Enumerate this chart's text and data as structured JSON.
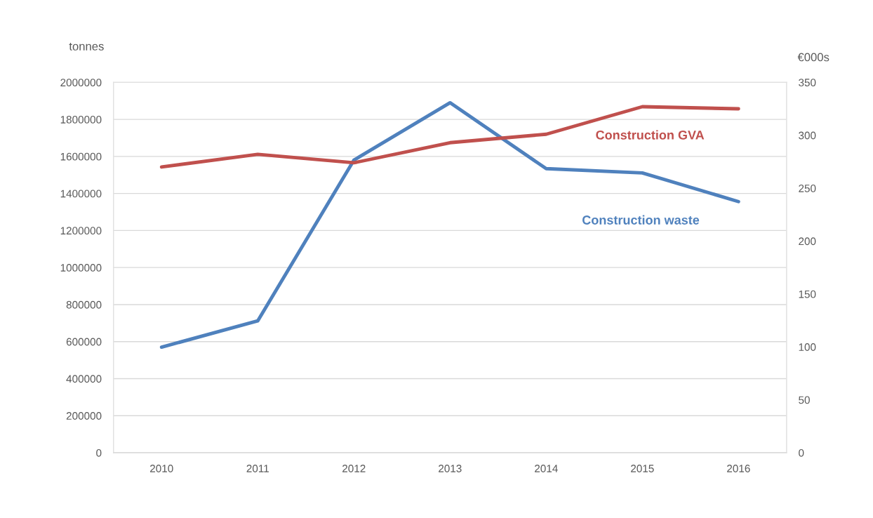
{
  "chart_data": {
    "type": "line",
    "categories": [
      "2010",
      "2011",
      "2012",
      "2013",
      "2014",
      "2015",
      "2016"
    ],
    "ylabel": "tonnes",
    "y2label": "€000s",
    "ylim": [
      0,
      2000000
    ],
    "yticks": [
      0,
      200000,
      400000,
      600000,
      800000,
      1000000,
      1200000,
      1400000,
      1600000,
      1800000,
      2000000
    ],
    "y2lim": [
      0,
      350
    ],
    "y2ticks": [
      0,
      50,
      100,
      150,
      200,
      250,
      300,
      350
    ],
    "grid": "y",
    "legend": false,
    "marker": "none",
    "line_style": "solid",
    "series": [
      {
        "name": "Construction waste",
        "color": "#4f81bd",
        "values": [
          570000,
          712000,
          1580000,
          1890000,
          1534000,
          1511000,
          1356000
        ]
      },
      {
        "name": "Construction GVA",
        "color": "#c0504d",
        "axis": "y2",
        "values": [
          270,
          282,
          274,
          293,
          301,
          327,
          325
        ]
      }
    ]
  }
}
